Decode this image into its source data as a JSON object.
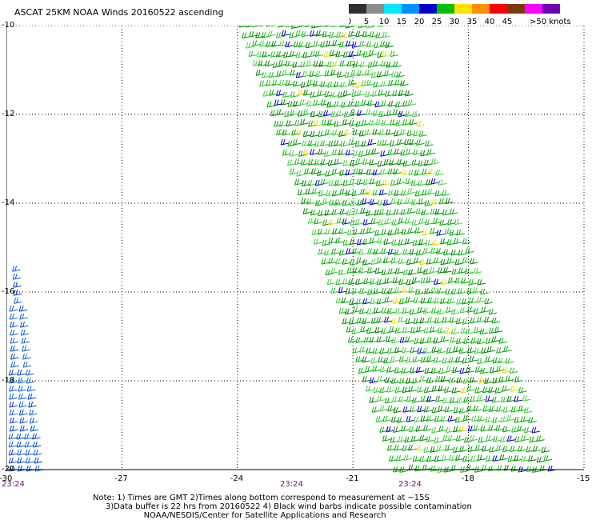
{
  "title": "ASCAT 25KM NOAA Winds 20160522 ascending",
  "legend": {
    "ticks": [
      "0",
      "5",
      "10",
      "15",
      "20",
      "25",
      "30",
      "35",
      "40",
      "45",
      ">50 knots"
    ],
    "colors": [
      "#303030",
      "#8c8c8c",
      "#00e8ff",
      "#0090ff",
      "#0000d0",
      "#00c000",
      "#ffe000",
      "#ff9000",
      "#ff0000",
      "#7a3a10",
      "#ff00ff",
      "#7000b0"
    ]
  },
  "chart_data": {
    "type": "wind-barb-map",
    "lon_range": [
      -30,
      -15
    ],
    "lat_range": [
      -20,
      -10
    ],
    "lon_ticks": [
      "-30",
      "-27",
      "-24",
      "-21",
      "-18",
      "-15"
    ],
    "lat_ticks": [
      "-10",
      "-12",
      "-14",
      "-16",
      "-18",
      "-20"
    ],
    "grid": true,
    "swaths": [
      {
        "name": "main-swath",
        "corners_lonlat": [
          [
            -24,
            -10
          ],
          [
            -20.2,
            -10
          ],
          [
            -15.8,
            -20
          ],
          [
            -20,
            -20
          ]
        ],
        "dominant_speed_knots": "15-20",
        "dominant_color": "#00b000"
      },
      {
        "name": "west-edge-swath",
        "corners_lonlat": [
          [
            -30,
            -15.5
          ],
          [
            -29.6,
            -15.5
          ],
          [
            -29.1,
            -20
          ],
          [
            -30,
            -20
          ]
        ],
        "dominant_speed_knots": "10-15",
        "dominant_color": "#0050c0"
      }
    ]
  },
  "time_labels": [
    "23:24",
    "23:24",
    "23:24"
  ],
  "notes": "Note: 1) Times are GMT 2)Times along bottom correspond to measurement at ~15S\n     3)Data buffer is 22 hrs from 20160522 4) Black wind barbs indicate possible contamination\n                    NOAA/NESDIS/Center for Satellite Applications and Research"
}
